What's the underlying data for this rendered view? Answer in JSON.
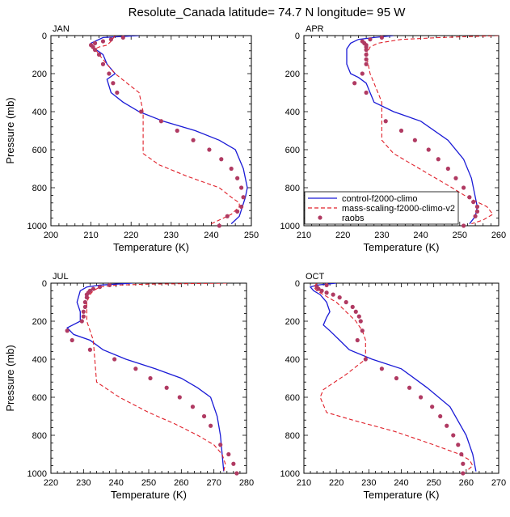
{
  "title": "Resolute_Canada  latitude= 74.7 N longitude= 95 W",
  "legend": [
    {
      "name": "control-f2000-climo",
      "color": "#1a1ad6",
      "style": "solid"
    },
    {
      "name": "mass-scaling-f2000-climo-v2",
      "color": "#e0202a",
      "style": "dashed"
    },
    {
      "name": "raobs",
      "color": "#b03a62",
      "style": "marker"
    }
  ],
  "chart_data": [
    {
      "type": "line",
      "label": "JAN",
      "xlabel": "Temperature (K)",
      "ylabel": "Pressure (mb)",
      "xlim": [
        200,
        250
      ],
      "ylim": [
        1000,
        0
      ],
      "xticks": [
        200,
        210,
        220,
        230,
        240,
        250
      ],
      "yticks": [
        0,
        200,
        400,
        600,
        800,
        1000
      ],
      "series": [
        {
          "name": "control-f2000-climo",
          "x": [
            222,
            213,
            210,
            211,
            213,
            214,
            216,
            214,
            215,
            218,
            222,
            228,
            236,
            242,
            246,
            248,
            249,
            248.5,
            247,
            245
          ],
          "y": [
            0,
            10,
            40,
            70,
            100,
            150,
            200,
            230,
            300,
            350,
            400,
            450,
            500,
            550,
            600,
            700,
            800,
            850,
            950,
            990
          ]
        },
        {
          "name": "mass-scaling-f2000-climo-v2",
          "x": [
            216,
            215,
            214,
            212,
            211,
            212,
            214,
            216,
            219,
            222,
            223,
            223,
            227,
            234,
            242,
            245,
            247,
            247,
            245,
            243,
            240
          ],
          "y": [
            0,
            30,
            50,
            60,
            70,
            100,
            150,
            200,
            250,
            300,
            400,
            620,
            680,
            740,
            800,
            850,
            880,
            900,
            940,
            960,
            990
          ]
        },
        {
          "name": "raobs",
          "x": [
            218,
            215,
            213,
            211,
            210,
            210.5,
            211,
            212,
            213,
            214.5,
            215.5,
            216.5,
            222.5,
            227.5,
            231.5,
            235.5,
            239.5,
            242.5,
            245,
            246.5,
            247.5,
            248,
            247.5,
            246.5,
            244,
            242
          ],
          "y": [
            10,
            20,
            30,
            40,
            50,
            60,
            75,
            100,
            150,
            200,
            250,
            300,
            400,
            450,
            500,
            550,
            600,
            650,
            700,
            750,
            800,
            850,
            900,
            925,
            950,
            1000
          ]
        }
      ]
    },
    {
      "type": "line",
      "label": "APR",
      "xlabel": "Temperature (K)",
      "ylabel": "",
      "xlim": [
        210,
        260
      ],
      "ylim": [
        1000,
        0
      ],
      "xticks": [
        210,
        220,
        230,
        240,
        250,
        260
      ],
      "yticks": [
        0,
        200,
        400,
        600,
        800,
        1000
      ],
      "series": [
        {
          "name": "control-f2000-climo",
          "x": [
            233,
            228,
            224,
            222,
            221,
            221,
            222,
            224,
            226,
            227,
            228,
            233,
            240,
            247,
            251,
            253,
            254,
            254.5,
            254,
            252.5
          ],
          "y": [
            0,
            10,
            20,
            40,
            70,
            150,
            200,
            220,
            250,
            300,
            350,
            400,
            450,
            550,
            650,
            750,
            850,
            900,
            950,
            990
          ]
        },
        {
          "name": "mass-scaling-f2000-climo-v2",
          "x": [
            260,
            245,
            235,
            229,
            227,
            226,
            227,
            228,
            229,
            230,
            230,
            233,
            238,
            243,
            248,
            252,
            257,
            258.5,
            256,
            253
          ],
          "y": [
            0,
            10,
            20,
            40,
            60,
            100,
            200,
            250,
            300,
            350,
            550,
            620,
            680,
            740,
            800,
            850,
            900,
            940,
            970,
            990
          ]
        },
        {
          "name": "raobs",
          "x": [
            230,
            227,
            225,
            225.5,
            226,
            226,
            226,
            226,
            226,
            226,
            225,
            223,
            226,
            231,
            235,
            238.5,
            242,
            244.5,
            247,
            249,
            251,
            252.5,
            253.5,
            254.5,
            254.5,
            254,
            251
          ],
          "y": [
            10,
            20,
            30,
            40,
            50,
            60,
            75,
            100,
            125,
            150,
            200,
            250,
            300,
            450,
            500,
            550,
            600,
            650,
            700,
            750,
            800,
            850,
            875,
            900,
            925,
            950,
            1000
          ]
        }
      ]
    },
    {
      "type": "line",
      "label": "JUL",
      "xlabel": "Temperature (K)",
      "ylabel": "Pressure (mb)",
      "xlim": [
        220,
        280
      ],
      "ylim": [
        1000,
        0
      ],
      "xticks": [
        220,
        230,
        240,
        250,
        260,
        270,
        280
      ],
      "yticks": [
        0,
        200,
        400,
        600,
        800,
        1000
      ],
      "series": [
        {
          "name": "control-f2000-climo",
          "x": [
            245,
            240,
            235,
            231,
            229,
            228,
            229,
            229,
            225,
            227,
            232,
            236,
            243,
            252,
            260,
            265,
            269,
            271,
            272,
            273
          ],
          "y": [
            0,
            5,
            10,
            20,
            40,
            100,
            150,
            200,
            235,
            270,
            300,
            350,
            400,
            450,
            500,
            550,
            600,
            700,
            800,
            990
          ]
        },
        {
          "name": "mass-scaling-f2000-climo-v2",
          "x": [
            274,
            250,
            240,
            235,
            233,
            232,
            231,
            231,
            233,
            234,
            241,
            250,
            258,
            265,
            270,
            272.5,
            273.5,
            273
          ],
          "y": [
            0,
            5,
            10,
            20,
            40,
            60,
            100,
            200,
            300,
            520,
            600,
            680,
            740,
            800,
            850,
            900,
            950,
            990
          ]
        },
        {
          "name": "raobs",
          "x": [
            238,
            235,
            233,
            232,
            231.5,
            231,
            231,
            230.5,
            230.5,
            230,
            230,
            229.5,
            225,
            226.5,
            232,
            239.5,
            246,
            250.5,
            255.5,
            259.5,
            263.5,
            267,
            269,
            272,
            274.5,
            276,
            277
          ],
          "y": [
            10,
            20,
            30,
            40,
            50,
            60,
            75,
            100,
            125,
            150,
            175,
            200,
            250,
            300,
            350,
            400,
            450,
            500,
            550,
            600,
            650,
            700,
            750,
            850,
            900,
            950,
            1000
          ]
        }
      ]
    },
    {
      "type": "line",
      "label": "OCT",
      "xlabel": "Temperature (K)",
      "ylabel": "",
      "xlim": [
        210,
        270
      ],
      "ylim": [
        1000,
        0
      ],
      "xticks": [
        210,
        220,
        230,
        240,
        250,
        260,
        270
      ],
      "yticks": [
        0,
        200,
        400,
        600,
        800,
        1000
      ],
      "series": [
        {
          "name": "control-f2000-climo",
          "x": [
            220,
            214,
            212,
            213,
            215,
            217,
            218,
            217,
            216,
            218,
            221,
            224,
            231,
            240,
            248,
            255,
            260,
            262,
            263
          ],
          "y": [
            0,
            10,
            20,
            40,
            60,
            100,
            150,
            180,
            220,
            250,
            300,
            350,
            400,
            450,
            550,
            650,
            800,
            900,
            990
          ]
        },
        {
          "name": "mass-scaling-f2000-climo-v2",
          "x": [
            214,
            213,
            214,
            216,
            218,
            220,
            223,
            226,
            228,
            229,
            229,
            223,
            216,
            215,
            217,
            225,
            238,
            250,
            258,
            261,
            262,
            260
          ],
          "y": [
            0,
            20,
            40,
            60,
            80,
            100,
            150,
            200,
            250,
            300,
            400,
            480,
            560,
            600,
            680,
            720,
            780,
            850,
            900,
            930,
            960,
            990
          ]
        },
        {
          "name": "raobs",
          "x": [
            217,
            214,
            214.5,
            215.5,
            217,
            219,
            221,
            223,
            225,
            226,
            227,
            227.5,
            228,
            226.5,
            229,
            234,
            238.5,
            242.5,
            246,
            249.5,
            252,
            254,
            256,
            257.5,
            258.5,
            259,
            259
          ],
          "y": [
            10,
            20,
            30,
            40,
            50,
            60,
            75,
            100,
            125,
            150,
            175,
            200,
            250,
            300,
            400,
            450,
            500,
            550,
            600,
            650,
            700,
            750,
            800,
            850,
            900,
            950,
            1000
          ]
        }
      ]
    }
  ]
}
